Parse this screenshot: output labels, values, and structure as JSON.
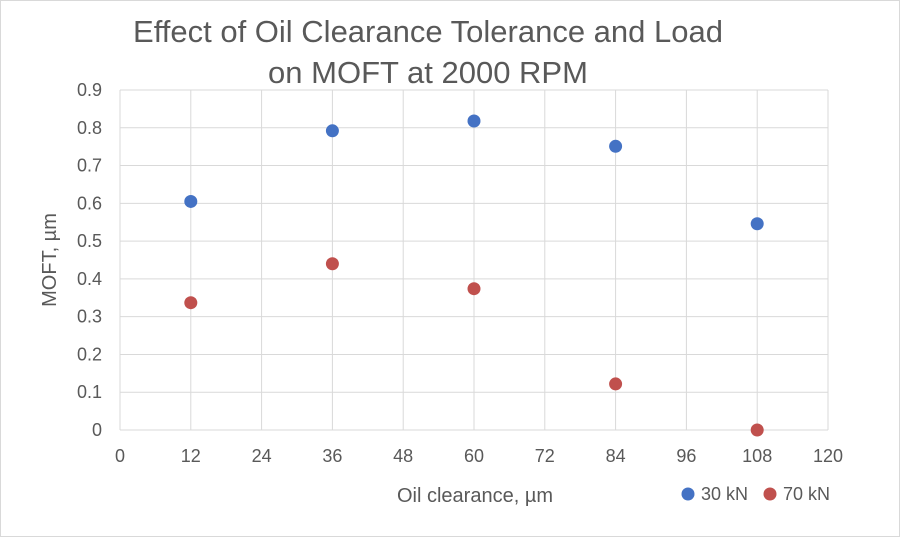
{
  "chart_data": {
    "type": "scatter",
    "title_lines": [
      "Effect of Oil Clearance Tolerance and Load",
      "on MOFT at 2000 RPM"
    ],
    "xlabel": "Oil clearance, µm",
    "ylabel": "MOFT, µm",
    "xlim": [
      0,
      120
    ],
    "ylim": [
      0,
      0.9
    ],
    "x_ticks": [
      "0",
      "12",
      "24",
      "36",
      "48",
      "60",
      "72",
      "84",
      "96",
      "108",
      "120"
    ],
    "y_ticks": [
      "0",
      "0.1",
      "0.2",
      "0.3",
      "0.4",
      "0.5",
      "0.6",
      "0.7",
      "0.8",
      "0.9"
    ],
    "grid": "both",
    "legend_position": "bottom-right",
    "series": [
      {
        "name": "30 kN",
        "color": "#4472c4",
        "x": [
          12,
          36,
          60,
          84,
          108
        ],
        "y": [
          0.605,
          0.792,
          0.818,
          0.751,
          0.546
        ]
      },
      {
        "name": "70 kN",
        "color": "#c0504d",
        "x": [
          12,
          36,
          60,
          84,
          108
        ],
        "y": [
          0.337,
          0.44,
          0.374,
          0.122,
          0.0
        ]
      }
    ]
  }
}
